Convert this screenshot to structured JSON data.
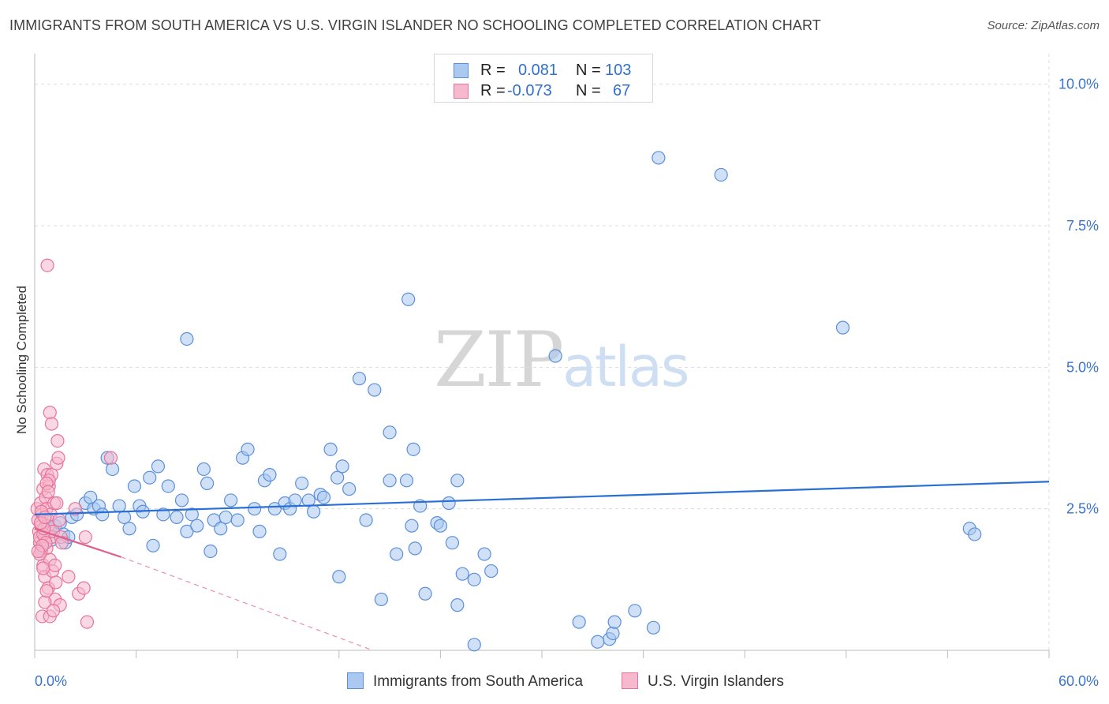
{
  "title": "IMMIGRANTS FROM SOUTH AMERICA VS U.S. VIRGIN ISLANDER NO SCHOOLING COMPLETED CORRELATION CHART",
  "source": "Source: ZipAtlas.com",
  "watermark": {
    "zip": "ZIP",
    "atlas": "atlas"
  },
  "legend": {
    "rows": [
      {
        "r_label": "R =",
        "r_value": "0.081",
        "n_label": "N =",
        "n_value": "103"
      },
      {
        "r_label": "R =",
        "r_value": "-0.073",
        "n_label": "N =",
        "n_value": "67"
      }
    ]
  },
  "colors": {
    "blue_fill": "#aac8f0",
    "blue_stroke": "#5b8fd9",
    "blue_line": "#2a6fd6",
    "pink_fill": "#f6b8cc",
    "pink_stroke": "#e8739a",
    "pink_line": "#e0608a",
    "grid": "#dddddd",
    "axis_label": "#3a75c9"
  },
  "chart_data": {
    "type": "scatter",
    "title": "IMMIGRANTS FROM SOUTH AMERICA VS U.S. VIRGIN ISLANDER NO SCHOOLING COMPLETED CORRELATION CHART",
    "xlabel": "",
    "ylabel": "No Schooling Completed",
    "xlim": [
      0,
      60
    ],
    "ylim": [
      0,
      10.4
    ],
    "x_tick_labels": [
      "0.0%",
      "60.0%"
    ],
    "y_ticks": [
      2.5,
      5.0,
      7.5,
      10.0
    ],
    "y_tick_labels": [
      "2.5%",
      "5.0%",
      "7.5%",
      "10.0%"
    ],
    "grid": true,
    "legend_position": "top-center",
    "series": [
      {
        "name": "Immigrants from South America",
        "color": "#5b8fd9",
        "trend": {
          "x": [
            0,
            60
          ],
          "y": [
            2.4,
            2.98
          ]
        },
        "points": [
          [
            0.4,
            1.8
          ],
          [
            0.6,
            2.0
          ],
          [
            0.8,
            2.3
          ],
          [
            0.9,
            2.15
          ],
          [
            1.0,
            1.95
          ],
          [
            1.2,
            2.2
          ],
          [
            1.5,
            2.25
          ],
          [
            1.7,
            2.05
          ],
          [
            1.8,
            1.9
          ],
          [
            2.0,
            2.0
          ],
          [
            2.2,
            2.35
          ],
          [
            2.5,
            2.4
          ],
          [
            3.0,
            2.6
          ],
          [
            3.3,
            2.7
          ],
          [
            3.5,
            2.5
          ],
          [
            3.8,
            2.55
          ],
          [
            4.0,
            2.4
          ],
          [
            4.3,
            3.4
          ],
          [
            4.6,
            3.2
          ],
          [
            5.0,
            2.55
          ],
          [
            5.3,
            2.35
          ],
          [
            5.6,
            2.15
          ],
          [
            5.9,
            2.9
          ],
          [
            6.2,
            2.55
          ],
          [
            6.4,
            2.45
          ],
          [
            6.8,
            3.05
          ],
          [
            7.0,
            1.85
          ],
          [
            7.3,
            3.25
          ],
          [
            7.6,
            2.4
          ],
          [
            7.9,
            2.9
          ],
          [
            8.4,
            2.35
          ],
          [
            8.7,
            2.65
          ],
          [
            9.0,
            2.1
          ],
          [
            9.3,
            2.4
          ],
          [
            9.6,
            2.2
          ],
          [
            10.0,
            3.2
          ],
          [
            10.2,
            2.95
          ],
          [
            10.4,
            1.75
          ],
          [
            10.6,
            2.3
          ],
          [
            11.0,
            2.15
          ],
          [
            11.3,
            2.35
          ],
          [
            11.6,
            2.65
          ],
          [
            12.0,
            2.3
          ],
          [
            12.3,
            3.4
          ],
          [
            12.6,
            3.55
          ],
          [
            13.0,
            2.5
          ],
          [
            13.3,
            2.1
          ],
          [
            13.6,
            3.0
          ],
          [
            13.9,
            3.1
          ],
          [
            14.2,
            2.5
          ],
          [
            14.5,
            1.7
          ],
          [
            14.8,
            2.6
          ],
          [
            15.1,
            2.5
          ],
          [
            15.4,
            2.65
          ],
          [
            15.8,
            2.95
          ],
          [
            16.2,
            2.65
          ],
          [
            16.5,
            2.45
          ],
          [
            16.9,
            2.75
          ],
          [
            17.1,
            2.7
          ],
          [
            17.5,
            3.55
          ],
          [
            17.9,
            3.05
          ],
          [
            18.2,
            3.25
          ],
          [
            18.6,
            2.85
          ],
          [
            19.2,
            4.8
          ],
          [
            19.6,
            2.3
          ],
          [
            20.1,
            4.6
          ],
          [
            21.0,
            3.0
          ],
          [
            21.0,
            3.85
          ],
          [
            21.4,
            1.7
          ],
          [
            22.0,
            3.0
          ],
          [
            22.4,
            3.55
          ],
          [
            22.8,
            2.55
          ],
          [
            23.8,
            2.25
          ],
          [
            24.0,
            2.2
          ],
          [
            24.5,
            2.6
          ],
          [
            24.7,
            1.9
          ],
          [
            25.3,
            1.35
          ],
          [
            26.0,
            1.25
          ],
          [
            26.6,
            1.7
          ],
          [
            27.0,
            1.4
          ],
          [
            22.3,
            2.2
          ],
          [
            25.0,
            3.0
          ],
          [
            22.1,
            6.2
          ],
          [
            22.5,
            1.8
          ],
          [
            30.8,
            5.2
          ],
          [
            9.0,
            5.5
          ],
          [
            36.9,
            8.7
          ],
          [
            40.6,
            8.4
          ],
          [
            47.8,
            5.7
          ],
          [
            23.1,
            1.0
          ],
          [
            26.0,
            0.1
          ],
          [
            34.0,
            0.2
          ],
          [
            32.2,
            0.5
          ],
          [
            34.2,
            0.3
          ],
          [
            34.3,
            0.5
          ],
          [
            35.5,
            0.7
          ],
          [
            36.6,
            0.4
          ],
          [
            33.3,
            0.15
          ],
          [
            20.5,
            0.9
          ],
          [
            25.0,
            0.8
          ],
          [
            55.3,
            2.15
          ],
          [
            55.6,
            2.05
          ],
          [
            18.0,
            1.3
          ]
        ]
      },
      {
        "name": "U.S. Virgin Islanders",
        "color": "#e8739a",
        "trend": {
          "x": [
            0,
            5.1
          ],
          "y": [
            2.15,
            1.65
          ]
        },
        "trend_dashed": {
          "x": [
            5.1,
            20.0
          ],
          "y": [
            1.65,
            0.0
          ]
        },
        "points": [
          [
            0.15,
            2.5
          ],
          [
            0.2,
            2.3
          ],
          [
            0.25,
            2.1
          ],
          [
            0.3,
            1.9
          ],
          [
            0.3,
            2.0
          ],
          [
            0.35,
            2.6
          ],
          [
            0.4,
            2.2
          ],
          [
            0.4,
            1.75
          ],
          [
            0.45,
            2.4
          ],
          [
            0.5,
            2.85
          ],
          [
            0.5,
            1.5
          ],
          [
            0.55,
            3.2
          ],
          [
            0.6,
            2.0
          ],
          [
            0.6,
            1.3
          ],
          [
            0.65,
            2.7
          ],
          [
            0.7,
            2.5
          ],
          [
            0.7,
            1.8
          ],
          [
            0.75,
            3.1
          ],
          [
            0.8,
            2.2
          ],
          [
            0.8,
            1.1
          ],
          [
            0.85,
            2.9
          ],
          [
            0.9,
            1.6
          ],
          [
            0.95,
            2.4
          ],
          [
            1.0,
            3.1
          ],
          [
            1.0,
            2.0
          ],
          [
            1.05,
            1.4
          ],
          [
            1.1,
            2.1
          ],
          [
            1.15,
            2.6
          ],
          [
            1.2,
            0.9
          ],
          [
            1.25,
            1.2
          ],
          [
            1.3,
            3.3
          ],
          [
            1.35,
            3.7
          ],
          [
            1.4,
            3.4
          ],
          [
            1.45,
            2.3
          ],
          [
            1.5,
            0.8
          ],
          [
            1.55,
            2.0
          ],
          [
            0.9,
            4.2
          ],
          [
            0.75,
            6.8
          ],
          [
            0.85,
            3.0
          ],
          [
            1.0,
            4.0
          ],
          [
            0.3,
            1.7
          ],
          [
            0.45,
            0.6
          ],
          [
            0.6,
            0.85
          ],
          [
            0.7,
            1.05
          ],
          [
            0.5,
            2.05
          ],
          [
            0.55,
            2.15
          ],
          [
            0.65,
            1.9
          ],
          [
            0.4,
            2.45
          ],
          [
            0.35,
            2.25
          ],
          [
            0.45,
            1.85
          ],
          [
            0.6,
            2.35
          ],
          [
            0.5,
            1.45
          ],
          [
            0.7,
            2.95
          ],
          [
            0.8,
            2.8
          ],
          [
            0.9,
            0.6
          ],
          [
            1.1,
            0.7
          ],
          [
            1.2,
            1.5
          ],
          [
            1.3,
            2.6
          ],
          [
            1.6,
            1.9
          ],
          [
            2.0,
            1.3
          ],
          [
            2.4,
            2.5
          ],
          [
            2.6,
            1.0
          ],
          [
            2.9,
            1.1
          ],
          [
            3.1,
            0.5
          ],
          [
            3.0,
            2.0
          ],
          [
            4.5,
            3.4
          ],
          [
            0.2,
            1.75
          ]
        ]
      }
    ]
  }
}
